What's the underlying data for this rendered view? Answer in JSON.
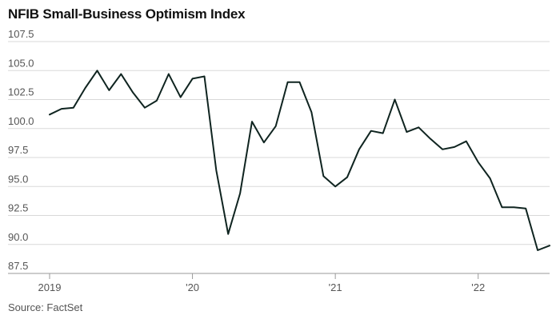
{
  "chart_data": {
    "type": "line",
    "title": "NFIB Small-Business Optimism Index",
    "source": "Source: FactSet",
    "ylim": [
      87.5,
      107.5
    ],
    "y_ticks": [
      107.5,
      105.0,
      102.5,
      100.0,
      97.5,
      95.0,
      92.5,
      90.0,
      87.5
    ],
    "y_tick_labels": [
      "107.5",
      "105.0",
      "102.5",
      "100.0",
      "97.5",
      "95.0",
      "92.5",
      "90.0",
      "87.5"
    ],
    "x_ticks": [
      {
        "value": "2019-01",
        "label": "2019"
      },
      {
        "value": "2020-01",
        "label": "'20"
      },
      {
        "value": "2021-01",
        "label": "'21"
      },
      {
        "value": "2022-01",
        "label": "'22"
      }
    ],
    "grid": true,
    "line_color": "#0f2420",
    "series": [
      {
        "x": [
          "2019-01",
          "2019-02",
          "2019-03",
          "2019-04",
          "2019-05",
          "2019-06",
          "2019-07",
          "2019-08",
          "2019-09",
          "2019-10",
          "2019-11",
          "2019-12",
          "2020-01",
          "2020-02",
          "2020-03",
          "2020-04",
          "2020-05",
          "2020-06",
          "2020-07",
          "2020-08",
          "2020-09",
          "2020-10",
          "2020-11",
          "2020-12",
          "2021-01",
          "2021-02",
          "2021-03",
          "2021-04",
          "2021-05",
          "2021-06",
          "2021-07",
          "2021-08",
          "2021-09",
          "2021-10",
          "2021-11",
          "2021-12",
          "2022-01",
          "2022-02",
          "2022-03",
          "2022-04",
          "2022-05",
          "2022-06",
          "2022-07"
        ],
        "values": [
          101.2,
          101.7,
          101.8,
          103.5,
          105.0,
          103.3,
          104.7,
          103.1,
          101.8,
          102.4,
          104.7,
          102.7,
          104.3,
          104.5,
          96.4,
          90.9,
          94.4,
          100.6,
          98.8,
          100.2,
          104.0,
          104.0,
          101.4,
          95.9,
          95.0,
          95.8,
          98.2,
          99.8,
          99.6,
          102.5,
          99.7,
          100.1,
          99.1,
          98.2,
          98.4,
          98.9,
          97.1,
          95.7,
          93.2,
          93.2,
          93.1,
          89.5,
          89.9
        ]
      }
    ]
  }
}
